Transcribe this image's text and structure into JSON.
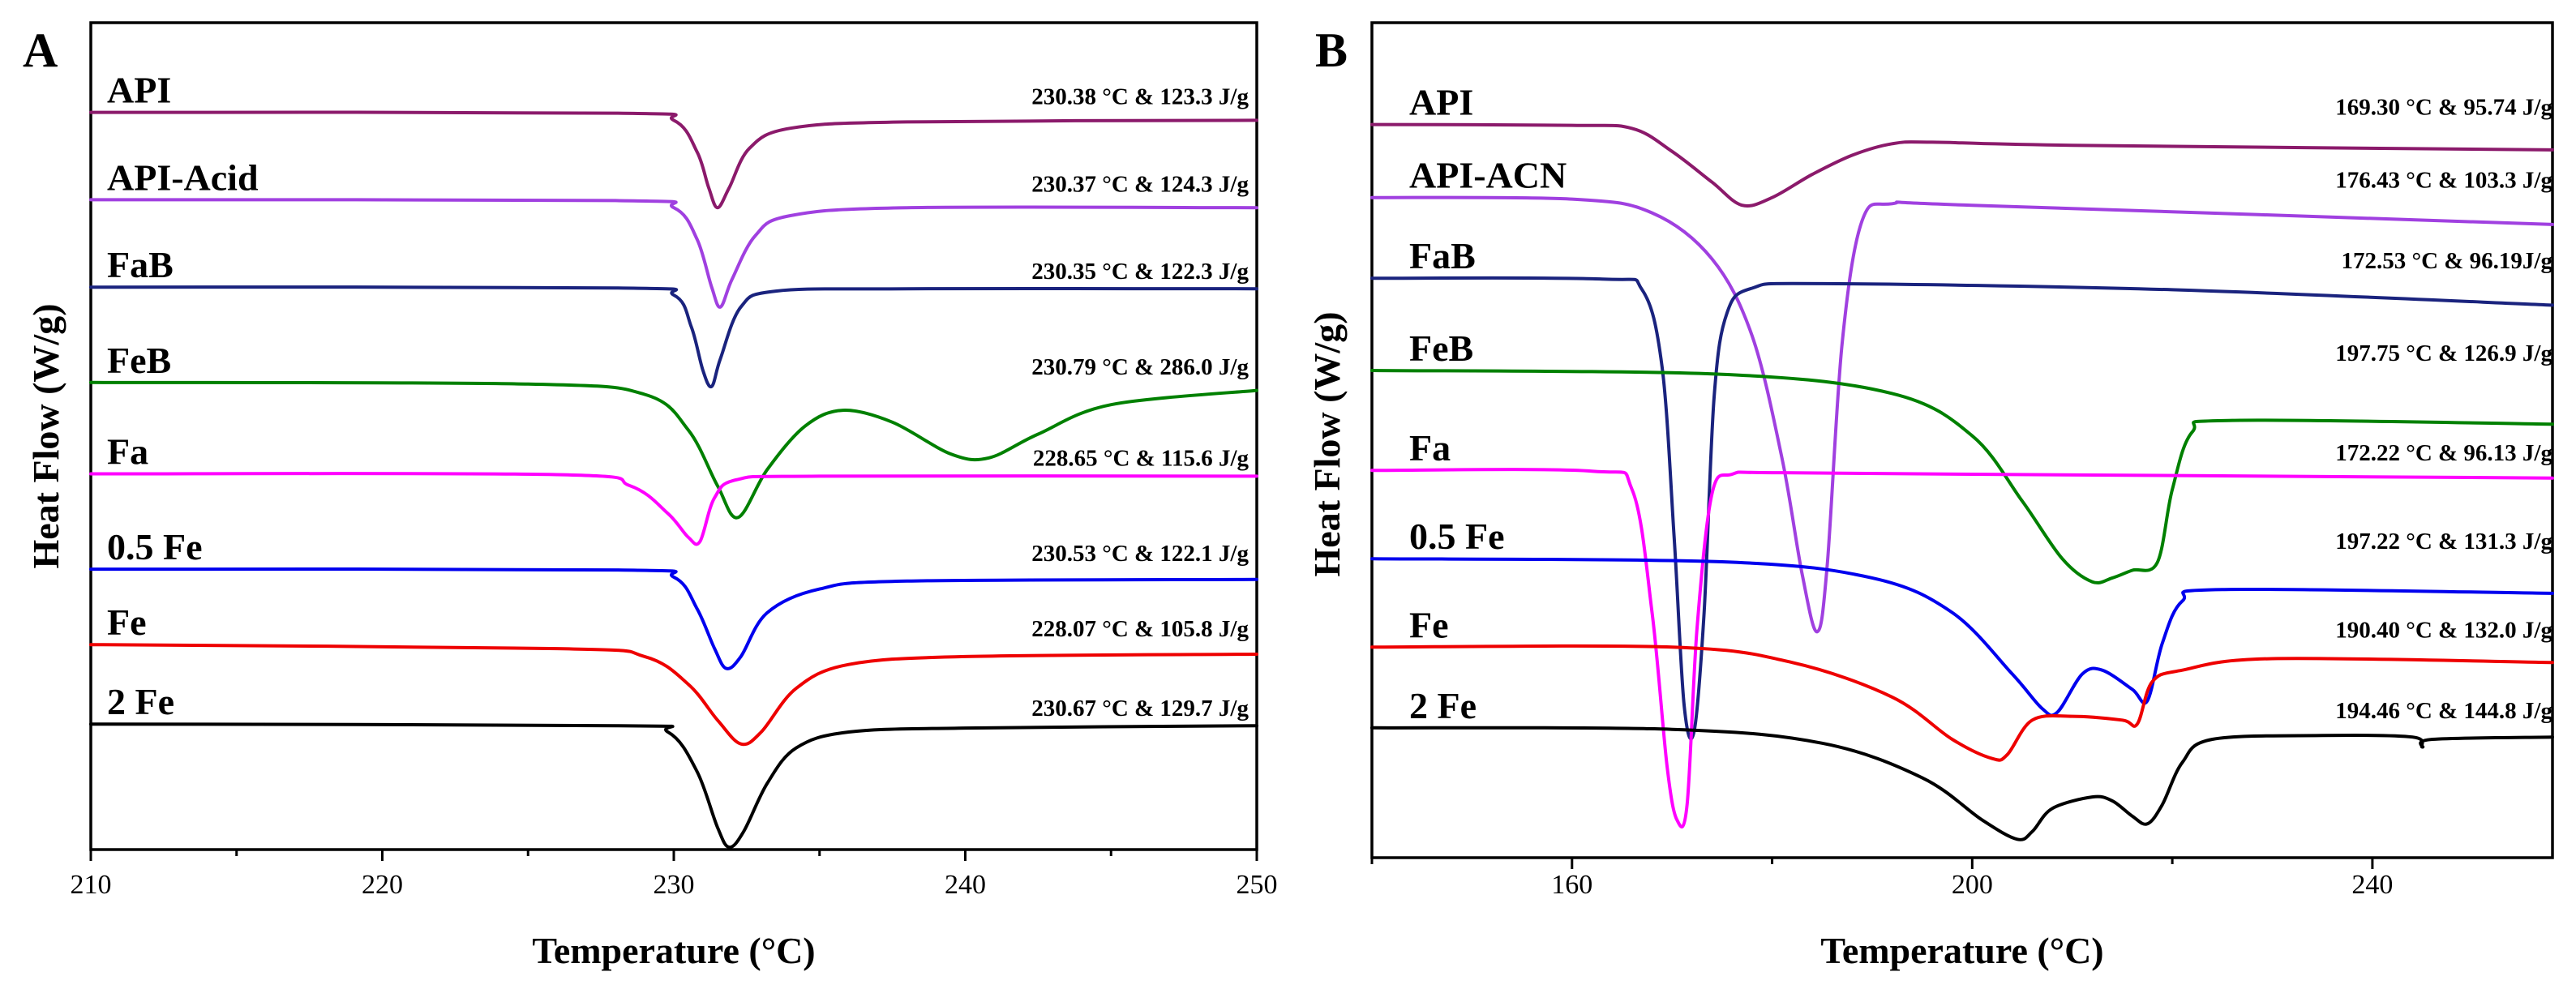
{
  "chart_data": [
    {
      "type": "line",
      "panel_label": "A",
      "xlabel": "Temperature (°C)",
      "ylabel": "Heat Flow (W/g)",
      "xlim": [
        210,
        250
      ],
      "ylim": [
        0,
        10
      ],
      "xticks": [
        210,
        220,
        230,
        240,
        250
      ],
      "grid": false,
      "legend": "inline labels left, annotations right",
      "series": [
        {
          "name": "API",
          "annotation": "230.38 °C & 123.3 J/g",
          "color": "#8B1A6B",
          "x": [
            210,
            228,
            230,
            230.8,
            231.2,
            231.5,
            231.9,
            232.6,
            234,
            238,
            250
          ],
          "y": [
            9.3,
            9.29,
            9.2,
            8.8,
            8.35,
            8.1,
            8.35,
            8.85,
            9.1,
            9.18,
            9.2
          ]
        },
        {
          "name": "API-Acid",
          "annotation": "230.37 °C & 124.3 J/g",
          "color": "#A040E0",
          "x": [
            210,
            228,
            230,
            230.8,
            231.3,
            231.6,
            232,
            232.8,
            234,
            238,
            250
          ],
          "y": [
            8.2,
            8.19,
            8.1,
            7.7,
            7.1,
            6.85,
            7.2,
            7.75,
            8.0,
            8.1,
            8.1
          ]
        },
        {
          "name": "FaB",
          "annotation": "230.35 °C & 122.3 J/g",
          "color": "#1A237E",
          "x": [
            210,
            228,
            230,
            230.6,
            231.0,
            231.3,
            231.6,
            232.3,
            233.5,
            238,
            250
          ],
          "y": [
            7.1,
            7.09,
            7.0,
            6.6,
            6.05,
            5.85,
            6.2,
            6.85,
            7.05,
            7.08,
            7.08
          ]
        },
        {
          "name": "FeB",
          "annotation": "230.79 °C & 286.0 J/g",
          "color": "#008000",
          "x": [
            210,
            225,
            229,
            230.5,
            231.5,
            232.2,
            233.2,
            234.5,
            235.8,
            237.5,
            239.5,
            240.8,
            242.5,
            245,
            250
          ],
          "y": [
            5.9,
            5.88,
            5.75,
            5.3,
            4.6,
            4.2,
            4.8,
            5.35,
            5.55,
            5.4,
            5.0,
            4.95,
            5.25,
            5.62,
            5.8
          ]
        },
        {
          "name": "Fa",
          "annotation": "228.65 °C & 115.6 J/g",
          "color": "#FF00FF",
          "x": [
            210,
            226,
            228.5,
            229.8,
            230.5,
            230.9,
            231.4,
            232.2,
            235,
            250
          ],
          "y": [
            4.75,
            4.74,
            4.6,
            4.25,
            3.95,
            3.9,
            4.45,
            4.68,
            4.72,
            4.72
          ]
        },
        {
          "name": "0.5 Fe",
          "annotation": "230.53 °C & 122.1 J/g",
          "color": "#0000EE",
          "x": [
            210,
            228,
            230,
            230.8,
            231.4,
            231.8,
            232.3,
            233.2,
            235,
            238,
            250
          ],
          "y": [
            3.55,
            3.54,
            3.45,
            3.05,
            2.55,
            2.3,
            2.45,
            3.0,
            3.3,
            3.4,
            3.42
          ]
        },
        {
          "name": "Fe",
          "annotation": "228.07 °C & 105.8 J/g",
          "color": "#EE0000",
          "x": [
            210,
            226,
            229,
            230.5,
            231.5,
            232.3,
            233.0,
            234.2,
            236,
            240,
            250
          ],
          "y": [
            2.6,
            2.55,
            2.45,
            2.1,
            1.65,
            1.35,
            1.5,
            2.05,
            2.35,
            2.45,
            2.48
          ]
        },
        {
          "name": "2 Fe",
          "annotation": "230.67 °C & 129.7 J/g",
          "color": "#000000",
          "x": [
            210,
            228,
            229.8,
            230.8,
            231.5,
            231.9,
            232.4,
            233.2,
            234.2,
            236,
            240,
            250
          ],
          "y": [
            1.6,
            1.58,
            1.5,
            1.0,
            0.3,
            0.05,
            0.25,
            0.85,
            1.3,
            1.5,
            1.55,
            1.58
          ]
        }
      ]
    },
    {
      "type": "line",
      "panel_label": "B",
      "xlabel": "Temperature (°C)",
      "ylabel": "Heat Flow (W/g)",
      "xlim": [
        140,
        258
      ],
      "ylim": [
        0,
        10
      ],
      "xticks": [
        160,
        200,
        240
      ],
      "grid": false,
      "legend": "inline labels left, annotations right",
      "series": [
        {
          "name": "API",
          "annotation": "169.30 °C & 95.74 J/g",
          "color": "#8B1A6B",
          "x": [
            140,
            160,
            166,
            170,
            174,
            177,
            180,
            184,
            188,
            192,
            196,
            210,
            258
          ],
          "y": [
            9.35,
            9.34,
            9.3,
            9.0,
            8.6,
            8.3,
            8.4,
            8.7,
            8.95,
            9.1,
            9.12,
            9.08,
            9.02
          ]
        },
        {
          "name": "API-ACN",
          "annotation": "176.43 °C & 103.3 J/g",
          "color": "#A040E0",
          "x": [
            140,
            160,
            168,
            174,
            178,
            181,
            183,
            184.5,
            185.5,
            187,
            189,
            192,
            200,
            258
          ],
          "y": [
            8.4,
            8.38,
            8.2,
            7.6,
            6.6,
            5.0,
            3.5,
            2.75,
            3.6,
            6.5,
            8.1,
            8.32,
            8.3,
            8.05
          ]
        },
        {
          "name": "FaB",
          "annotation": "172.53 °C & 96.19J/g",
          "color": "#1A237E",
          "x": [
            140,
            163,
            167,
            169,
            170.2,
            171.2,
            172.2,
            173.2,
            174.2,
            175.5,
            178,
            185,
            220,
            258
          ],
          "y": [
            7.35,
            7.34,
            7.2,
            6.2,
            4.0,
            1.8,
            1.45,
            3.0,
            5.8,
            6.9,
            7.22,
            7.28,
            7.2,
            7.0
          ]
        },
        {
          "name": "FeB",
          "annotation": "197.75 °C & 126.9 J/g",
          "color": "#008000",
          "x": [
            140,
            175,
            192,
            200,
            205,
            209,
            212,
            214,
            216,
            218.5,
            220,
            222,
            226,
            258
          ],
          "y": [
            6.15,
            6.1,
            5.85,
            5.3,
            4.45,
            3.7,
            3.4,
            3.45,
            3.55,
            3.65,
            4.6,
            5.35,
            5.5,
            5.45
          ]
        },
        {
          "name": "Fa",
          "annotation": "172.22 °C & 96.13 J/g",
          "color": "#FF00FF",
          "x": [
            140,
            162,
            166,
            168,
            169.5,
            170.5,
            171.5,
            172.5,
            174,
            176,
            180,
            200,
            258
          ],
          "y": [
            4.85,
            4.84,
            4.6,
            3.0,
            1.0,
            0.3,
            0.5,
            2.8,
            4.55,
            4.8,
            4.82,
            4.8,
            4.75
          ]
        },
        {
          "name": "0.5 Fe",
          "annotation": "197.22 °C & 131.3 J/g",
          "color": "#0000EE",
          "x": [
            140,
            175,
            190,
            198,
            204,
            207,
            208.5,
            211,
            213,
            216,
            217.5,
            219,
            221,
            225,
            258
          ],
          "y": [
            3.7,
            3.66,
            3.45,
            3.0,
            2.2,
            1.75,
            1.7,
            2.2,
            2.25,
            2.0,
            1.85,
            2.6,
            3.15,
            3.3,
            3.25
          ]
        },
        {
          "name": "Fe",
          "annotation": "190.40 °C & 132.0 J/g",
          "color": "#EE0000",
          "x": [
            140,
            170,
            182,
            192,
            198,
            202,
            203.5,
            206,
            210,
            215,
            216.5,
            218,
            221,
            230,
            258
          ],
          "y": [
            2.55,
            2.55,
            2.35,
            1.9,
            1.35,
            1.1,
            1.15,
            1.6,
            1.65,
            1.6,
            1.55,
            2.1,
            2.25,
            2.4,
            2.35
          ]
        },
        {
          "name": "2 Fe",
          "annotation": "194.46 °C & 144.8 J/g",
          "color": "#000000",
          "x": [
            140,
            170,
            185,
            195,
            201,
            204.5,
            206,
            208,
            212,
            214,
            216,
            217.5,
            219,
            221,
            224,
            235,
            244,
            245,
            246,
            258
          ],
          "y": [
            1.5,
            1.48,
            1.3,
            0.85,
            0.3,
            0.05,
            0.15,
            0.45,
            0.6,
            0.55,
            0.35,
            0.25,
            0.5,
            1.05,
            1.35,
            1.4,
            1.38,
            1.25,
            1.35,
            1.38
          ]
        }
      ]
    }
  ]
}
